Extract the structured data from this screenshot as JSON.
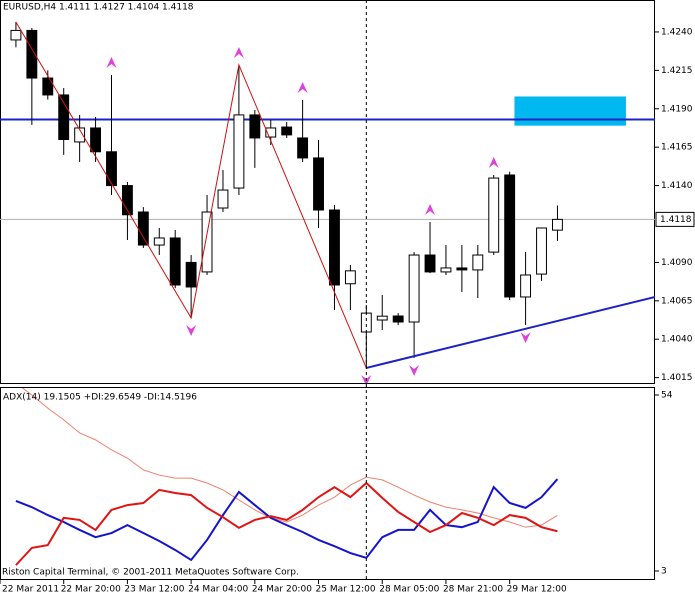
{
  "chart_data": [
    {
      "type": "candlestick",
      "title": "EURUSD,H4  1.4111 1.4127 1.4104 1.4118",
      "x": [
        0,
        1,
        2,
        3,
        4,
        5,
        6,
        7,
        8,
        9,
        10,
        11,
        12,
        13,
        14,
        15,
        16,
        17,
        18,
        19,
        20,
        21,
        22,
        23,
        24,
        25,
        26,
        27,
        28,
        29,
        30,
        31,
        32,
        33,
        34
      ],
      "open": [
        1.42348,
        1.4241,
        1.421,
        1.4199,
        1.41684,
        1.41775,
        1.4162,
        1.414,
        1.41228,
        1.41013,
        1.41059,
        1.409,
        1.40838,
        1.41254,
        1.41384,
        1.4186,
        1.41716,
        1.41781,
        1.4171,
        1.4158,
        1.41241,
        1.40761,
        1.40447,
        1.40525,
        1.40551,
        1.40512,
        1.40948,
        1.40838,
        1.40864,
        1.40851,
        1.40967,
        1.41469,
        1.40675,
        1.40824,
        1.4111
      ],
      "high": [
        1.42465,
        1.42426,
        1.4215,
        1.42035,
        1.4186,
        1.41847,
        1.4212,
        1.41423,
        1.4126,
        1.41124,
        1.41111,
        1.40948,
        1.41339,
        1.41502,
        1.42185,
        1.41892,
        1.41827,
        1.41814,
        1.41957,
        1.41697,
        1.41274,
        1.40883,
        1.40622,
        1.40688,
        1.4057,
        1.40967,
        1.41163,
        1.41013,
        1.41013,
        1.41013,
        1.41469,
        1.4149,
        1.40967,
        1.41124,
        1.4127
      ],
      "low": [
        1.423,
        1.41795,
        1.4196,
        1.416,
        1.41554,
        1.41554,
        1.41339,
        1.41046,
        1.40994,
        1.40948,
        1.40733,
        1.40538,
        1.40818,
        1.41228,
        1.41339,
        1.41515,
        1.41664,
        1.4171,
        1.41554,
        1.41124,
        1.4059,
        1.4059,
        1.40213,
        1.4046,
        1.40492,
        1.40278,
        1.4083,
        1.40818,
        1.40707,
        1.40668,
        1.40948,
        1.40655,
        1.40492,
        1.4078,
        1.4104
      ],
      "close": [
        1.4241,
        1.421,
        1.4199,
        1.417,
        1.41775,
        1.4162,
        1.414,
        1.4121,
        1.41013,
        1.41059,
        1.40753,
        1.4074,
        1.41228,
        1.41371,
        1.4186,
        1.4171,
        1.41775,
        1.4173,
        1.4158,
        1.41241,
        1.40753,
        1.40845,
        1.4057,
        1.4055,
        1.40512,
        1.40948,
        1.40838,
        1.40864,
        1.40851,
        1.40948,
        1.41449,
        1.40675,
        1.40818,
        1.41124,
        1.4118
      ],
      "up_color": "#ffffff",
      "down_color": "#000000",
      "xlim": [
        -1,
        40.125
      ],
      "xticks": [
        {
          "value": -1,
          "label": "22 Mar 2011"
        },
        {
          "value": 3,
          "label": "22 Mar 20:00"
        },
        {
          "value": 7,
          "label": "23 Mar 12:00"
        },
        {
          "value": 11,
          "label": "24 Mar 04:00"
        },
        {
          "value": 15,
          "label": "24 Mar 20:00"
        },
        {
          "value": 19,
          "label": "25 Mar 12:00"
        },
        {
          "value": 23,
          "label": "28 Mar 05:00"
        },
        {
          "value": 27,
          "label": "28 Mar 21:00"
        },
        {
          "value": 31,
          "label": "29 Mar 12:00"
        }
      ],
      "ylim": [
        1.40115,
        1.42608
      ],
      "yticks": [
        {
          "value": 1.424,
          "label": "1.4240"
        },
        1.4215,
        {
          "value": 1.419,
          "label": "1.4190"
        },
        1.4165,
        {
          "value": 1.414,
          "label": "1.4140"
        },
        {
          "value": 1.409,
          "label": "1.4090"
        },
        1.4065,
        {
          "value": 1.404,
          "label": "1.4040"
        },
        1.4015
      ],
      "last_price": 1.4118,
      "hline": 1.4183,
      "hline_color": "#1c22c4",
      "zone": {
        "x": [
          31.3,
          38.3
        ],
        "y": [
          1.4179,
          1.4198
        ],
        "color": "#00b8f0"
      },
      "zigzag": {
        "x": [
          0,
          11,
          14,
          22
        ],
        "y": [
          1.42465,
          1.40538,
          1.42185,
          1.40213
        ],
        "color": "#d01010"
      },
      "trendline": {
        "x": [
          22,
          40.125
        ],
        "y": [
          1.40213,
          1.40675
        ],
        "color": "#1c22c4"
      },
      "fractals_up": {
        "x": [
          6,
          14,
          18,
          26,
          30
        ],
        "y": [
          1.4212,
          1.42185,
          1.41957,
          1.41163,
          1.41469
        ]
      },
      "fractals_down": {
        "x": [
          11,
          22,
          25,
          32
        ],
        "y": [
          1.40538,
          1.40213,
          1.40278,
          1.40492
        ]
      },
      "fractal_color": "#e040e0",
      "cursor_x": 22
    },
    {
      "type": "line",
      "title": "ADX(14) 19.1505  +DI:29.6549  -DI:14.5196",
      "x": [
        0,
        1,
        2,
        3,
        4,
        5,
        6,
        7,
        8,
        9,
        10,
        11,
        12,
        13,
        14,
        15,
        16,
        17,
        18,
        19,
        20,
        21,
        22,
        23,
        24,
        25,
        26,
        27,
        28,
        29,
        30,
        31,
        32,
        33,
        34
      ],
      "ylim": [
        0.39,
        56.03
      ],
      "yticks": [
        54,
        3
      ],
      "series": [
        {
          "name": "ADX",
          "color": "#f08070",
          "width": 1,
          "values": [
            57.5,
            54.0,
            50.2,
            46.8,
            43.0,
            41.0,
            38.1,
            35.7,
            32.3,
            30.8,
            29.9,
            29.9,
            28.5,
            26.5,
            23.6,
            20.7,
            18.4,
            17.2,
            19.2,
            22.1,
            24.4,
            27.9,
            30.2,
            29.4,
            27.3,
            25.0,
            23.0,
            21.5,
            20.7,
            19.8,
            18.4,
            17.2,
            15.7,
            16.3,
            19.15
          ]
        },
        {
          "name": "+DI",
          "color": "#1414cc",
          "width": 2,
          "values": [
            23.3,
            21.5,
            19.2,
            17.2,
            14.9,
            12.8,
            14.0,
            16.3,
            14.0,
            11.7,
            9.1,
            6.2,
            12.0,
            19.2,
            25.9,
            22.1,
            18.4,
            16.3,
            14.3,
            12.0,
            10.2,
            8.2,
            6.8,
            12.8,
            14.9,
            14.9,
            20.7,
            16.3,
            15.7,
            17.2,
            27.3,
            22.7,
            21.3,
            24.4,
            29.65
          ]
        },
        {
          "name": "-DI",
          "color": "#e01414",
          "width": 2,
          "values": [
            4.7,
            9.7,
            10.5,
            18.4,
            17.8,
            14.9,
            20.7,
            22.1,
            22.7,
            26.5,
            25.6,
            25.0,
            21.3,
            18.6,
            15.5,
            17.8,
            18.9,
            17.8,
            20.7,
            24.4,
            27.3,
            24.4,
            28.5,
            24.2,
            20.1,
            17.2,
            14.3,
            16.3,
            19.8,
            18.4,
            16.3,
            19.2,
            18.4,
            15.7,
            14.52
          ]
        }
      ],
      "footer": "Riston Capital Terminal, © 2001-2011 MetaQuotes Software Corp."
    }
  ]
}
